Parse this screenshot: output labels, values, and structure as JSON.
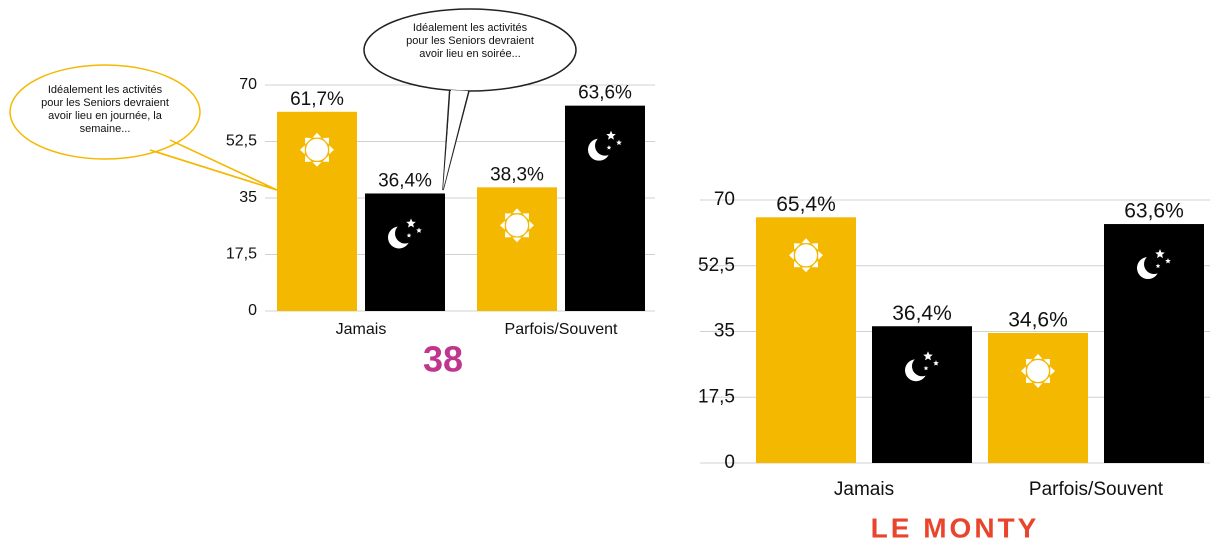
{
  "chart_data": [
    {
      "type": "bar",
      "categories": [
        "Jamais",
        "Parfois/Souvent"
      ],
      "series": [
        {
          "color": "#f5b800",
          "values": [
            61.7,
            38.3
          ],
          "value_labels": [
            "61,7%",
            "38,3%"
          ]
        },
        {
          "color": "#000000",
          "values": [
            36.4,
            63.6
          ],
          "value_labels": [
            "36,4%",
            "63,6%"
          ]
        }
      ],
      "ylim": [
        0,
        70
      ],
      "yticks": [
        0,
        {
          "value": 17.5,
          "label": "17,5"
        },
        35,
        {
          "value": 52.5,
          "label": "52,5"
        },
        70
      ],
      "grid": true,
      "annotations": [
        [
          "Idéalement les activités",
          "pour les Seniors devraient",
          "avoir lieu en journée, la",
          "semaine..."
        ],
        [
          "Idéalement les activités",
          "pour les Seniors devraient",
          "avoir lieu en soirée..."
        ]
      ]
    },
    {
      "type": "bar",
      "categories": [
        "Jamais",
        "Parfois/Souvent"
      ],
      "series": [
        {
          "color": "#f5b800",
          "values": [
            65.4,
            34.6
          ],
          "value_labels": [
            "65,4%",
            "34,6%"
          ]
        },
        {
          "color": "#000000",
          "values": [
            36.4,
            63.6
          ],
          "value_labels": [
            "36,4%",
            "63,6%"
          ]
        }
      ],
      "ylim": [
        0,
        70
      ],
      "yticks": [
        0,
        {
          "value": 17.5,
          "label": "17,5"
        },
        35,
        {
          "value": 52.5,
          "label": "52,5"
        },
        70
      ],
      "grid": true
    }
  ],
  "logos": [
    "38",
    "LE MONTY"
  ]
}
